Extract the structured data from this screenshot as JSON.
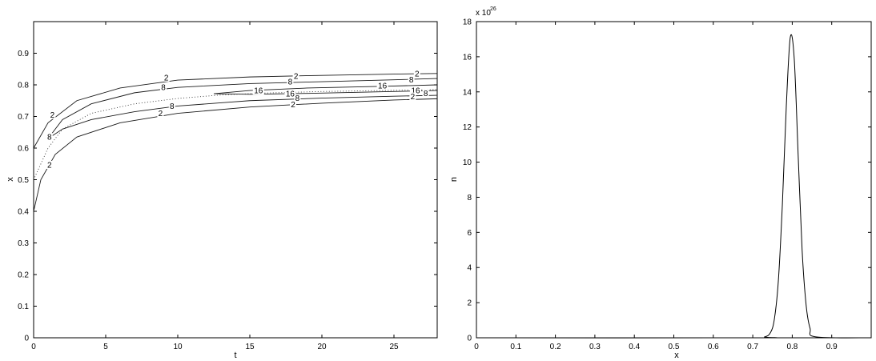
{
  "chart_data": [
    {
      "type": "contour",
      "xlabel": "t",
      "ylabel": "x",
      "xlim": [
        0,
        28
      ],
      "ylim": [
        0,
        1
      ],
      "xticks": [
        "0",
        "5",
        "10",
        "15",
        "20",
        "25"
      ],
      "yticks": [
        "0",
        "0.1",
        "0.2",
        "0.3",
        "0.4",
        "0.5",
        "0.6",
        "0.7",
        "0.8",
        "0.9"
      ],
      "contour_levels": [
        "2",
        "8",
        "16"
      ],
      "contours": [
        {
          "level": "2",
          "points": [
            [
              0,
              0.6
            ],
            [
              1,
              0.68
            ],
            [
              3,
              0.75
            ],
            [
              6,
              0.79
            ],
            [
              10,
              0.815
            ],
            [
              15,
              0.825
            ],
            [
              20,
              0.83
            ],
            [
              25,
              0.834
            ],
            [
              28,
              0.836
            ]
          ]
        },
        {
          "level": "8",
          "points": [
            [
              1,
              0.63
            ],
            [
              2,
              0.69
            ],
            [
              4,
              0.74
            ],
            [
              7,
              0.775
            ],
            [
              10,
              0.792
            ],
            [
              15,
              0.804
            ],
            [
              20,
              0.81
            ],
            [
              25,
              0.816
            ],
            [
              28,
              0.82
            ]
          ]
        },
        {
          "level": "16",
          "points": [
            [
              28,
              0.8
            ],
            [
              24,
              0.795
            ],
            [
              19,
              0.79
            ],
            [
              15,
              0.782
            ],
            [
              12.5,
              0.772
            ],
            [
              15,
              0.77
            ],
            [
              19,
              0.773
            ],
            [
              24,
              0.778
            ],
            [
              28,
              0.782
            ]
          ]
        },
        {
          "level": "8",
          "points": [
            [
              1,
              0.63
            ],
            [
              2,
              0.66
            ],
            [
              4,
              0.69
            ],
            [
              7,
              0.715
            ],
            [
              10,
              0.733
            ],
            [
              15,
              0.75
            ],
            [
              20,
              0.758
            ],
            [
              25,
              0.764
            ],
            [
              28,
              0.767
            ]
          ]
        },
        {
          "level": "2",
          "points": [
            [
              0,
              0.4
            ],
            [
              0.5,
              0.5
            ],
            [
              1.5,
              0.58
            ],
            [
              3,
              0.635
            ],
            [
              6,
              0.68
            ],
            [
              10,
              0.71
            ],
            [
              15,
              0.73
            ],
            [
              20,
              0.742
            ],
            [
              25,
              0.752
            ],
            [
              28,
              0.756
            ]
          ]
        }
      ],
      "dotted_curve": [
        [
          0,
          0.5
        ],
        [
          1,
          0.6
        ],
        [
          2,
          0.66
        ],
        [
          4,
          0.71
        ],
        [
          7,
          0.74
        ],
        [
          10,
          0.757
        ],
        [
          13,
          0.768
        ],
        [
          16,
          0.774
        ],
        [
          20,
          0.779
        ],
        [
          24,
          0.782
        ],
        [
          28,
          0.785
        ]
      ],
      "contour_labels": [
        {
          "text": "2",
          "t": 1.3,
          "x": 0.705
        },
        {
          "text": "2",
          "t": 9.2,
          "x": 0.823
        },
        {
          "text": "2",
          "t": 18.2,
          "x": 0.828
        },
        {
          "text": "2",
          "t": 26.6,
          "x": 0.836
        },
        {
          "text": "8",
          "t": 9.0,
          "x": 0.792
        },
        {
          "text": "8",
          "t": 17.8,
          "x": 0.81
        },
        {
          "text": "8",
          "t": 26.2,
          "x": 0.817
        },
        {
          "text": "16",
          "t": 15.6,
          "x": 0.782
        },
        {
          "text": "16",
          "t": 24.2,
          "x": 0.798
        },
        {
          "text": "16",
          "t": 17.8,
          "x": 0.772
        },
        {
          "text": "16",
          "t": 26.5,
          "x": 0.782
        },
        {
          "text": "8",
          "t": 18.3,
          "x": 0.758
        },
        {
          "text": "8",
          "t": 27.2,
          "x": 0.773
        },
        {
          "text": "2",
          "t": 26.3,
          "x": 0.763
        },
        {
          "text": "2",
          "t": 18.0,
          "x": 0.738
        },
        {
          "text": "8",
          "t": 9.6,
          "x": 0.733
        },
        {
          "text": "2",
          "t": 8.8,
          "x": 0.71
        },
        {
          "text": "8",
          "t": 1.1,
          "x": 0.635
        },
        {
          "text": "2",
          "t": 1.1,
          "x": 0.547
        }
      ]
    },
    {
      "type": "line",
      "xlabel": "x",
      "ylabel": "n",
      "xlim": [
        0,
        1
      ],
      "ylim": [
        0,
        18
      ],
      "xticks": [
        "0",
        "0.1",
        "0.2",
        "0.3",
        "0.4",
        "0.5",
        "0.6",
        "0.7",
        "0.8",
        "0.9"
      ],
      "yticks": [
        "0",
        "2",
        "4",
        "6",
        "8",
        "10",
        "12",
        "14",
        "16",
        "18"
      ],
      "y_multiplier_base": "x 10",
      "y_multiplier_exp": "26",
      "series": [
        {
          "x": [
            0,
            0.7,
            0.73,
            0.745,
            0.755,
            0.765,
            0.775,
            0.785,
            0.795,
            0.805,
            0.815,
            0.825,
            0.835,
            0.845,
            0.86,
            1.0
          ],
          "y": [
            0,
            0,
            0.05,
            0.3,
            1.1,
            3.3,
            7.6,
            13.2,
            17.1,
            15.9,
            10.4,
            5.0,
            1.9,
            0.55,
            0.05,
            0
          ]
        }
      ]
    }
  ]
}
